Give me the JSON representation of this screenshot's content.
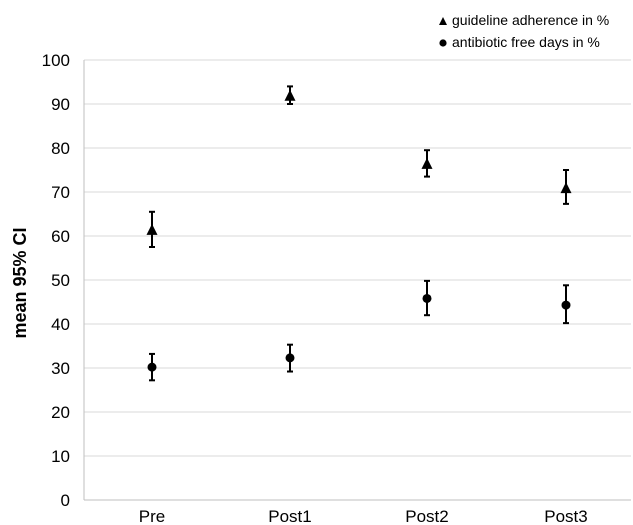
{
  "chart_data": {
    "type": "scatter",
    "categories": [
      "Pre",
      "Post1",
      "Post2",
      "Post3"
    ],
    "ylabel": "mean 95% CI",
    "xlabel": "",
    "ylim": [
      0,
      100
    ],
    "yticks": [
      0,
      10,
      20,
      30,
      40,
      50,
      60,
      70,
      80,
      90,
      100
    ],
    "grid": true,
    "legend_position": "top-right",
    "series": [
      {
        "name": "guideline adherence in %",
        "marker": "triangle",
        "values": [
          61.5,
          92,
          76.5,
          71
        ],
        "ci_low": [
          57.5,
          90,
          73.5,
          67.3
        ],
        "ci_high": [
          65.5,
          94,
          79.5,
          75
        ]
      },
      {
        "name": "antibiotic free days in %",
        "marker": "circle",
        "values": [
          30.2,
          32.3,
          45.8,
          44.3
        ],
        "ci_low": [
          27.2,
          29.2,
          42,
          40.2
        ],
        "ci_high": [
          33.2,
          35.3,
          49.8,
          48.8
        ]
      }
    ],
    "colors": {
      "marker": "#000000",
      "grid": "#d9d9d9",
      "axis": "#bfbfbf"
    }
  }
}
